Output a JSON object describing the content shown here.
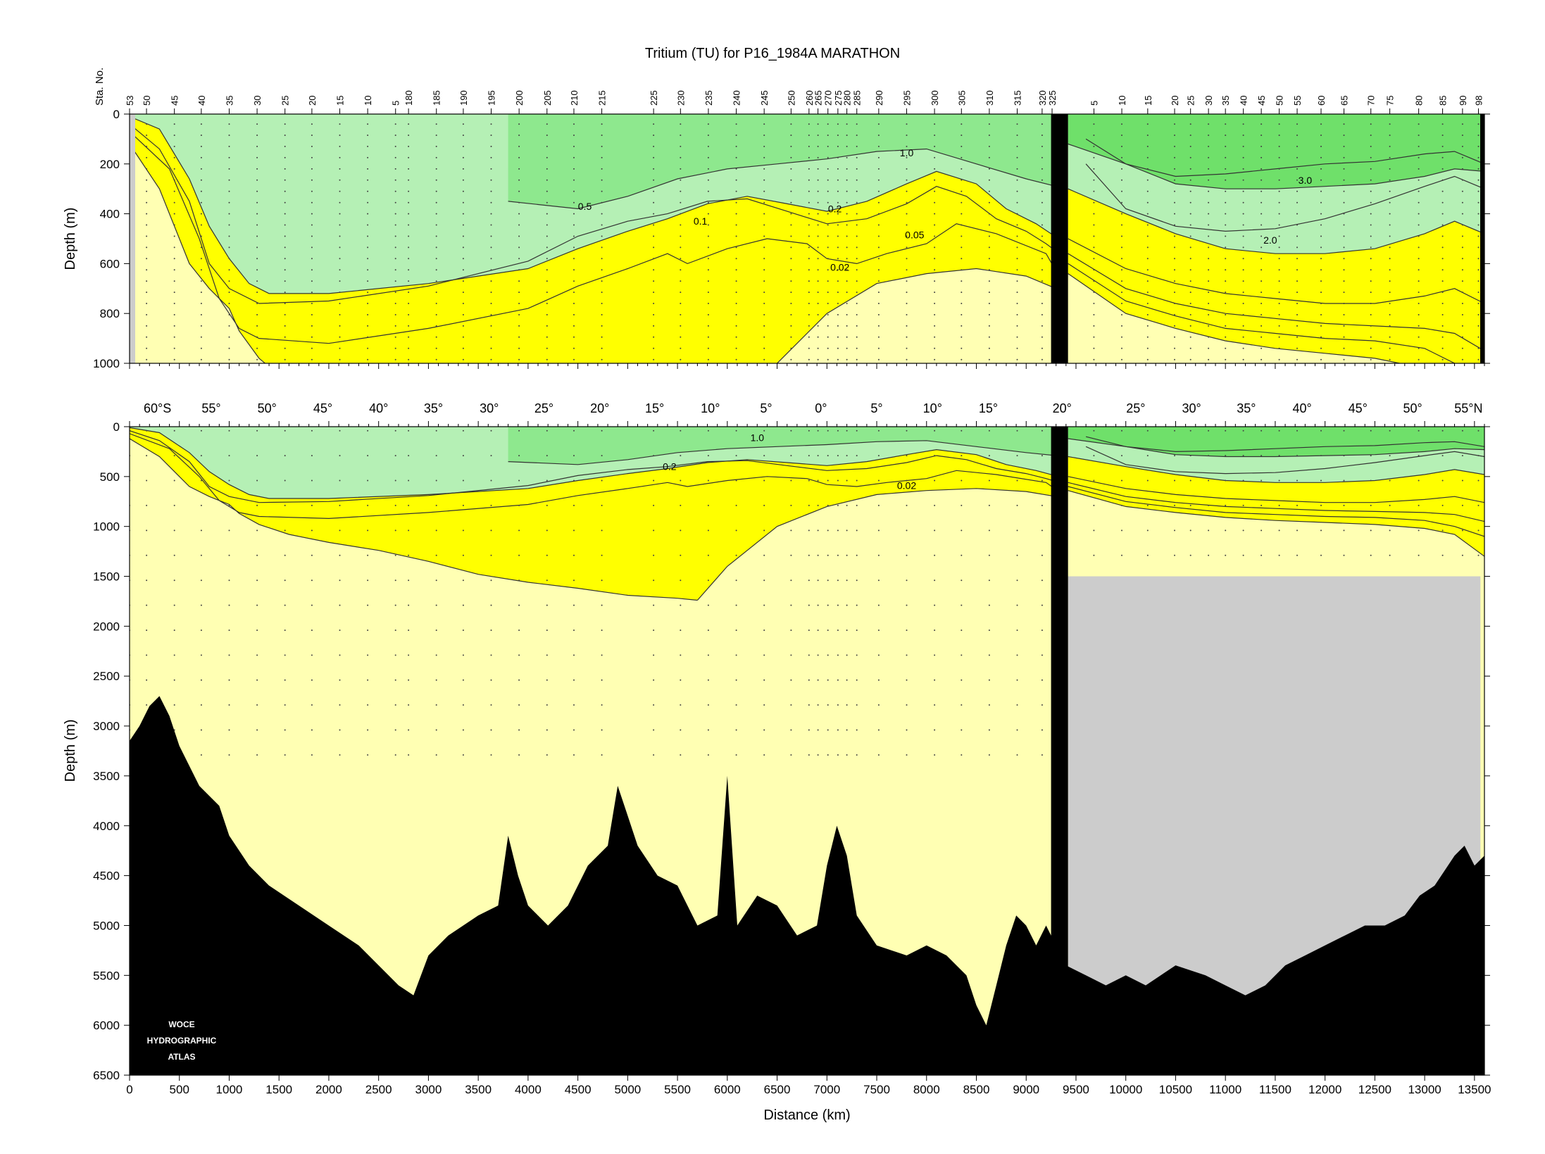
{
  "chart_data": {
    "type": "heatmap",
    "title": "Tritium (TU) for P16_1984A MARATHON",
    "variable": "Tritium (TU)",
    "xlabel": "Distance (km)",
    "ylabel": "Depth (m)",
    "station_axis_label": "Sta. No.",
    "xlim": [
      0,
      13600
    ],
    "x_ticks": [
      0,
      500,
      1000,
      1500,
      2000,
      2500,
      3000,
      3500,
      4000,
      4500,
      5000,
      5500,
      6000,
      6500,
      7000,
      7500,
      8000,
      8500,
      9000,
      9500,
      10000,
      10500,
      11000,
      11500,
      12000,
      12500,
      13000,
      13500
    ],
    "upper_panel": {
      "ylim": [
        0,
        1000
      ],
      "y_ticks": [
        0,
        200,
        400,
        600,
        800,
        1000
      ]
    },
    "lower_panel": {
      "ylim": [
        0,
        6500
      ],
      "y_ticks": [
        0,
        500,
        1000,
        1500,
        2000,
        2500,
        3000,
        3500,
        4000,
        4500,
        5000,
        5500,
        6000,
        6500
      ]
    },
    "latitude_labels": [
      {
        "text": "60°S",
        "km": 280
      },
      {
        "text": "55°",
        "km": 820
      },
      {
        "text": "50°",
        "km": 1380
      },
      {
        "text": "45°",
        "km": 1940
      },
      {
        "text": "40°",
        "km": 2500
      },
      {
        "text": "35°",
        "km": 3050
      },
      {
        "text": "30°",
        "km": 3610
      },
      {
        "text": "25°",
        "km": 4160
      },
      {
        "text": "20°",
        "km": 4720
      },
      {
        "text": "15°",
        "km": 5270
      },
      {
        "text": "10°",
        "km": 5830
      },
      {
        "text": "5°",
        "km": 6390
      },
      {
        "text": "0°",
        "km": 6940
      },
      {
        "text": "5°",
        "km": 7500
      },
      {
        "text": "10°",
        "km": 8060
      },
      {
        "text": "15°",
        "km": 8620
      },
      {
        "text": "20°",
        "km": 9360
      },
      {
        "text": "25°",
        "km": 10100
      },
      {
        "text": "30°",
        "km": 10660
      },
      {
        "text": "35°",
        "km": 11210
      },
      {
        "text": "40°",
        "km": 11770
      },
      {
        "text": "45°",
        "km": 12330
      },
      {
        "text": "50°",
        "km": 12880
      },
      {
        "text": "55°N",
        "km": 13440
      }
    ],
    "station_labels": [
      {
        "text": "53",
        "km": 0
      },
      {
        "text": "50",
        "km": 170
      },
      {
        "text": "45",
        "km": 450
      },
      {
        "text": "40",
        "km": 720
      },
      {
        "text": "35",
        "km": 1000
      },
      {
        "text": "30",
        "km": 1280
      },
      {
        "text": "25",
        "km": 1560
      },
      {
        "text": "20",
        "km": 1830
      },
      {
        "text": "15",
        "km": 2110
      },
      {
        "text": "10",
        "km": 2390
      },
      {
        "text": "5",
        "km": 2670
      },
      {
        "text": "180",
        "km": 2800
      },
      {
        "text": "185",
        "km": 3080
      },
      {
        "text": "190",
        "km": 3350
      },
      {
        "text": "195",
        "km": 3630
      },
      {
        "text": "200",
        "km": 3910
      },
      {
        "text": "205",
        "km": 4190
      },
      {
        "text": "210",
        "km": 4460
      },
      {
        "text": "215",
        "km": 4740
      },
      {
        "text": "225",
        "km": 5260
      },
      {
        "text": "230",
        "km": 5530
      },
      {
        "text": "235",
        "km": 5810
      },
      {
        "text": "240",
        "km": 6090
      },
      {
        "text": "245",
        "km": 6370
      },
      {
        "text": "250",
        "km": 6640
      },
      {
        "text": "260",
        "km": 6820
      },
      {
        "text": "265",
        "km": 6910
      },
      {
        "text": "270",
        "km": 7010
      },
      {
        "text": "275",
        "km": 7110
      },
      {
        "text": "280",
        "km": 7200
      },
      {
        "text": "285",
        "km": 7300
      },
      {
        "text": "290",
        "km": 7520
      },
      {
        "text": "295",
        "km": 7800
      },
      {
        "text": "300",
        "km": 8080
      },
      {
        "text": "305",
        "km": 8350
      },
      {
        "text": "310",
        "km": 8630
      },
      {
        "text": "315",
        "km": 8910
      },
      {
        "text": "320",
        "km": 9160
      },
      {
        "text": "325",
        "km": 9260
      },
      {
        "text": "5",
        "km": 9680
      },
      {
        "text": "10",
        "km": 9960
      },
      {
        "text": "15",
        "km": 10220
      },
      {
        "text": "20",
        "km": 10490
      },
      {
        "text": "25",
        "km": 10650
      },
      {
        "text": "30",
        "km": 10830
      },
      {
        "text": "35",
        "km": 11000
      },
      {
        "text": "40",
        "km": 11180
      },
      {
        "text": "45",
        "km": 11360
      },
      {
        "text": "50",
        "km": 11540
      },
      {
        "text": "55",
        "km": 11720
      },
      {
        "text": "60",
        "km": 11960
      },
      {
        "text": "65",
        "km": 12190
      },
      {
        "text": "70",
        "km": 12460
      },
      {
        "text": "75",
        "km": 12650
      },
      {
        "text": "80",
        "km": 12940
      },
      {
        "text": "85",
        "km": 13180
      },
      {
        "text": "90",
        "km": 13380
      },
      {
        "text": "98",
        "km": 13540
      }
    ],
    "contour_levels": [
      0.02,
      0.05,
      0.1,
      0.2,
      0.5,
      1.0,
      2.0,
      3.0
    ],
    "contour_labels": [
      {
        "panel": "upper",
        "text": "1.0",
        "km": 7800,
        "depth": 155
      },
      {
        "panel": "upper",
        "text": "0.5",
        "km": 4570,
        "depth": 370
      },
      {
        "panel": "upper",
        "text": "0.1",
        "km": 5730,
        "depth": 430
      },
      {
        "panel": "upper",
        "text": "0.2",
        "km": 7080,
        "depth": 380
      },
      {
        "panel": "upper",
        "text": "0.05",
        "km": 7880,
        "depth": 485
      },
      {
        "panel": "upper",
        "text": "0.02",
        "km": 7130,
        "depth": 615
      },
      {
        "panel": "upper",
        "text": "3.0",
        "km": 11800,
        "depth": 265
      },
      {
        "panel": "upper",
        "text": "2.0",
        "km": 11450,
        "depth": 505
      },
      {
        "panel": "lower",
        "text": "1.0",
        "km": 6300,
        "depth": 110
      },
      {
        "panel": "lower",
        "text": "0.2",
        "km": 5420,
        "depth": 400
      },
      {
        "panel": "lower",
        "text": "0.02",
        "km": 7800,
        "depth": 590
      }
    ],
    "fill_classes": [
      {
        "range": "< 0.02",
        "color": "#ffffb3"
      },
      {
        "range": "0.02 - 0.5",
        "color": "#ffff00"
      },
      {
        "range": "0.5 - 1.0",
        "color": "#b5f0b5"
      },
      {
        "range": "1.0 - 2.0",
        "color": "#8ee88e"
      },
      {
        "range": "> 2.0",
        "color": "#6fe06a"
      }
    ],
    "bathymetry_depth_m": [
      [
        0,
        3150
      ],
      [
        100,
        3000
      ],
      [
        200,
        2800
      ],
      [
        300,
        2700
      ],
      [
        400,
        2900
      ],
      [
        500,
        3200
      ],
      [
        700,
        3600
      ],
      [
        900,
        3800
      ],
      [
        1000,
        4100
      ],
      [
        1200,
        4400
      ],
      [
        1400,
        4600
      ],
      [
        1700,
        4800
      ],
      [
        2000,
        5000
      ],
      [
        2300,
        5200
      ],
      [
        2500,
        5400
      ],
      [
        2700,
        5600
      ],
      [
        2850,
        5700
      ],
      [
        3000,
        5300
      ],
      [
        3200,
        5100
      ],
      [
        3500,
        4900
      ],
      [
        3700,
        4800
      ],
      [
        3800,
        4100
      ],
      [
        3900,
        4500
      ],
      [
        4000,
        4800
      ],
      [
        4200,
        5000
      ],
      [
        4400,
        4800
      ],
      [
        4600,
        4400
      ],
      [
        4800,
        4200
      ],
      [
        4900,
        3600
      ],
      [
        5000,
        3900
      ],
      [
        5100,
        4200
      ],
      [
        5300,
        4500
      ],
      [
        5500,
        4600
      ],
      [
        5700,
        5000
      ],
      [
        5900,
        4900
      ],
      [
        6000,
        3500
      ],
      [
        6100,
        5000
      ],
      [
        6300,
        4700
      ],
      [
        6500,
        4800
      ],
      [
        6700,
        5100
      ],
      [
        6900,
        5000
      ],
      [
        7000,
        4400
      ],
      [
        7100,
        4000
      ],
      [
        7200,
        4300
      ],
      [
        7300,
        4900
      ],
      [
        7500,
        5200
      ],
      [
        7800,
        5300
      ],
      [
        8000,
        5200
      ],
      [
        8200,
        5300
      ],
      [
        8400,
        5500
      ],
      [
        8500,
        5800
      ],
      [
        8600,
        6000
      ],
      [
        8700,
        5600
      ],
      [
        8800,
        5200
      ],
      [
        8900,
        4900
      ],
      [
        9000,
        5000
      ],
      [
        9100,
        5200
      ],
      [
        9200,
        5000
      ],
      [
        9400,
        5400
      ],
      [
        9600,
        5500
      ],
      [
        9800,
        5600
      ],
      [
        10000,
        5500
      ],
      [
        10200,
        5600
      ],
      [
        10500,
        5400
      ],
      [
        10800,
        5500
      ],
      [
        11000,
        5600
      ],
      [
        11200,
        5700
      ],
      [
        11400,
        5600
      ],
      [
        11600,
        5400
      ],
      [
        11800,
        5300
      ],
      [
        12000,
        5200
      ],
      [
        12200,
        5100
      ],
      [
        12400,
        5000
      ],
      [
        12600,
        5000
      ],
      [
        12800,
        4900
      ],
      [
        12950,
        4700
      ],
      [
        13100,
        4600
      ],
      [
        13300,
        4300
      ],
      [
        13400,
        4200
      ],
      [
        13500,
        4400
      ],
      [
        13600,
        4300
      ]
    ],
    "no_data_region": {
      "km_from": 9420,
      "km_to": 13560,
      "depth_from": 1500,
      "depth_to": 6500
    },
    "gap_barrier_km": [
      9250,
      9420
    ],
    "grid": false,
    "legend": "none",
    "watermark": "WOCE HYDROGRAPHIC ATLAS"
  },
  "colors": {
    "background": "#ffffff",
    "no_tritium": "#ffffb3",
    "low": "#ffff00",
    "mid": "#b5f0b5",
    "high": "#8ee88e",
    "highest": "#6fe06a",
    "bathymetry": "#000000",
    "no_data": "#cccccc"
  }
}
